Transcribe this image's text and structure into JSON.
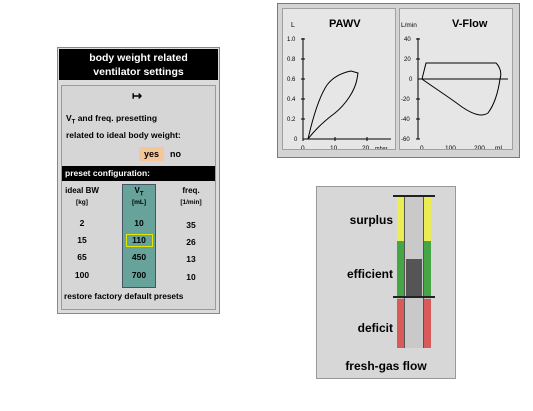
{
  "ventilator": {
    "title_line1": "body weight related",
    "title_line2": "ventilator settings",
    "arrow_glyph": "↦",
    "vt_line1_pre": "V",
    "vt_line1_sub": "T",
    "vt_line1_post": " and freq. presetting",
    "vt_line2": "related to ideal body weight:",
    "yes_label": "yes",
    "no_label": "no",
    "preset_header": "preset configuration:",
    "columns": {
      "bw_head": "ideal BW",
      "bw_unit": "[kg]",
      "vt_head": "V",
      "vt_head_sub": "T",
      "vt_unit": "[mL]",
      "freq_head": "freq.",
      "freq_unit": "[1/min]"
    },
    "rows": [
      {
        "bw": "2",
        "vt": "10",
        "freq": "35"
      },
      {
        "bw": "15",
        "vt": "110",
        "freq": "26"
      },
      {
        "bw": "65",
        "vt": "450",
        "freq": "13"
      },
      {
        "bw": "100",
        "vt": "700",
        "freq": "10"
      }
    ],
    "selected_row": 1,
    "restore_label": "restore factory default presets",
    "colors": {
      "vt_column": "#67a39a",
      "yes_bg": "#f4c69a",
      "selection": "#e3e600"
    }
  },
  "graphs": {
    "pawv": {
      "title": "PAWV",
      "y_unit": "L",
      "y_ticks": [
        "1.0",
        "0.8",
        "0.6",
        "0.4",
        "0.2",
        "0"
      ],
      "x_ticks": [
        "0",
        "10",
        "20"
      ],
      "x_unit": "mbar"
    },
    "vflow": {
      "title": "V-Flow",
      "y_unit": "L/min",
      "y_ticks": [
        "40",
        "20",
        "0",
        "-20",
        "-40",
        "-60"
      ],
      "x_ticks": [
        "0",
        "100",
        "200"
      ],
      "x_unit": "mL"
    }
  },
  "fresh_gas": {
    "labels": {
      "surplus": "surplus",
      "efficient": "efficient",
      "deficit": "deficit"
    },
    "title": "fresh-gas flow",
    "colors": {
      "surplus": "#ecec55",
      "efficient": "#46a646",
      "deficit": "#d85a5a",
      "indicator": "#555555"
    }
  }
}
